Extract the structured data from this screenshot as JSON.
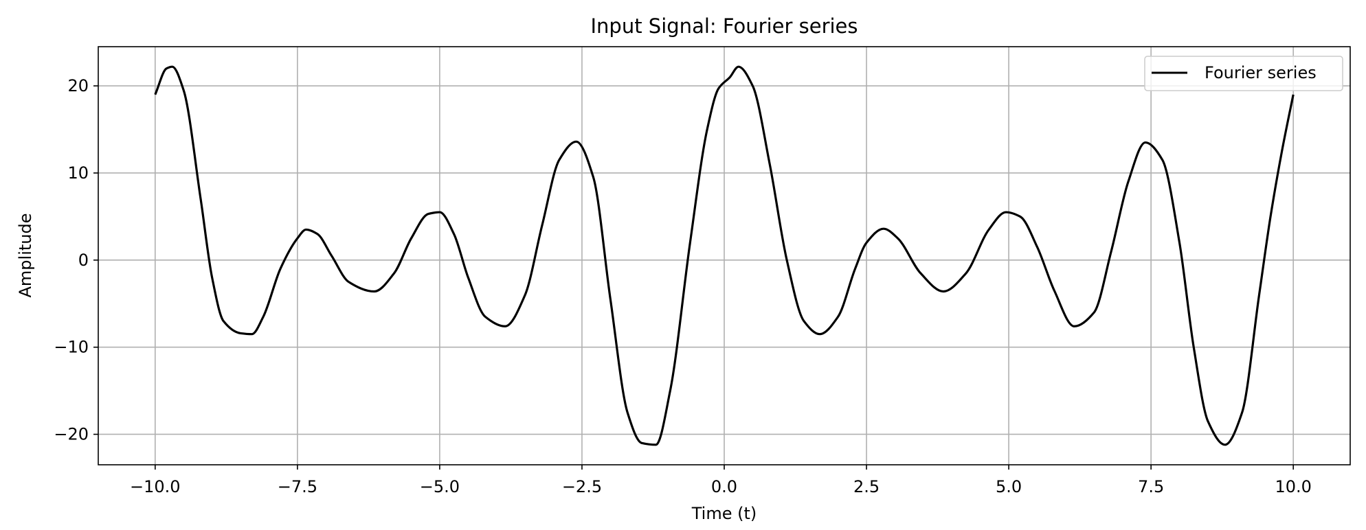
{
  "chart_data": {
    "type": "line",
    "title": "Input Signal: Fourier series",
    "xlabel": "Time (t)",
    "ylabel": "Amplitude",
    "xlim": [
      -11,
      11
    ],
    "ylim": [
      -23.5,
      24.5
    ],
    "xticks": [
      -10.0,
      -7.5,
      -5.0,
      -2.5,
      0.0,
      2.5,
      5.0,
      7.5,
      10.0
    ],
    "xtick_labels": [
      "−10.0",
      "−7.5",
      "−5.0",
      "−2.5",
      "0.0",
      "2.5",
      "5.0",
      "7.5",
      "10.0"
    ],
    "yticks": [
      -20,
      -10,
      0,
      10,
      20
    ],
    "ytick_labels": [
      "−20",
      "−10",
      "0",
      "10",
      "20"
    ],
    "grid": true,
    "legend_position": "upper-right",
    "series": [
      {
        "name": "Fourier series",
        "color": "#000000",
        "x": [
          -10.0,
          -9.8,
          -9.7,
          -9.5,
          -9.2,
          -9.0,
          -8.8,
          -8.5,
          -8.3,
          -8.1,
          -7.8,
          -7.5,
          -7.35,
          -7.15,
          -6.9,
          -6.6,
          -6.15,
          -5.8,
          -5.5,
          -5.2,
          -5.0,
          -4.75,
          -4.5,
          -4.2,
          -3.85,
          -3.5,
          -3.2,
          -2.9,
          -2.6,
          -2.3,
          -2.0,
          -1.7,
          -1.45,
          -1.2,
          -0.95,
          -0.6,
          -0.3,
          -0.1,
          0.1,
          0.25,
          0.5,
          0.8,
          1.1,
          1.4,
          1.68,
          2.0,
          2.3,
          2.5,
          2.8,
          3.05,
          3.45,
          3.85,
          4.25,
          4.65,
          4.95,
          5.2,
          5.5,
          5.8,
          6.15,
          6.5,
          6.8,
          7.1,
          7.4,
          7.7,
          8.0,
          8.25,
          8.5,
          8.8,
          9.1,
          9.4,
          9.6,
          9.8,
          10.0
        ],
        "y": [
          19.0,
          22.0,
          22.2,
          19.5,
          7.0,
          -2.0,
          -7.0,
          -8.4,
          -8.5,
          -6.5,
          -1.0,
          2.5,
          3.5,
          3.0,
          0.5,
          -2.5,
          -3.6,
          -1.5,
          2.5,
          5.3,
          5.5,
          3.0,
          -2.0,
          -6.5,
          -7.6,
          -4.0,
          4.0,
          11.5,
          13.6,
          9.5,
          -4.5,
          -17.5,
          -21.0,
          -21.2,
          -15.0,
          2.0,
          15.0,
          19.7,
          21.0,
          22.2,
          20.0,
          11.0,
          0.0,
          -7.0,
          -8.5,
          -6.5,
          -1.0,
          2.0,
          3.6,
          2.5,
          -1.5,
          -3.6,
          -1.5,
          3.5,
          5.5,
          5.0,
          1.5,
          -3.5,
          -7.6,
          -6.0,
          1.0,
          9.0,
          13.5,
          11.5,
          2.0,
          -10.0,
          -18.5,
          -21.2,
          -17.5,
          -4.0,
          5.0,
          12.5,
          19.0
        ]
      }
    ]
  }
}
